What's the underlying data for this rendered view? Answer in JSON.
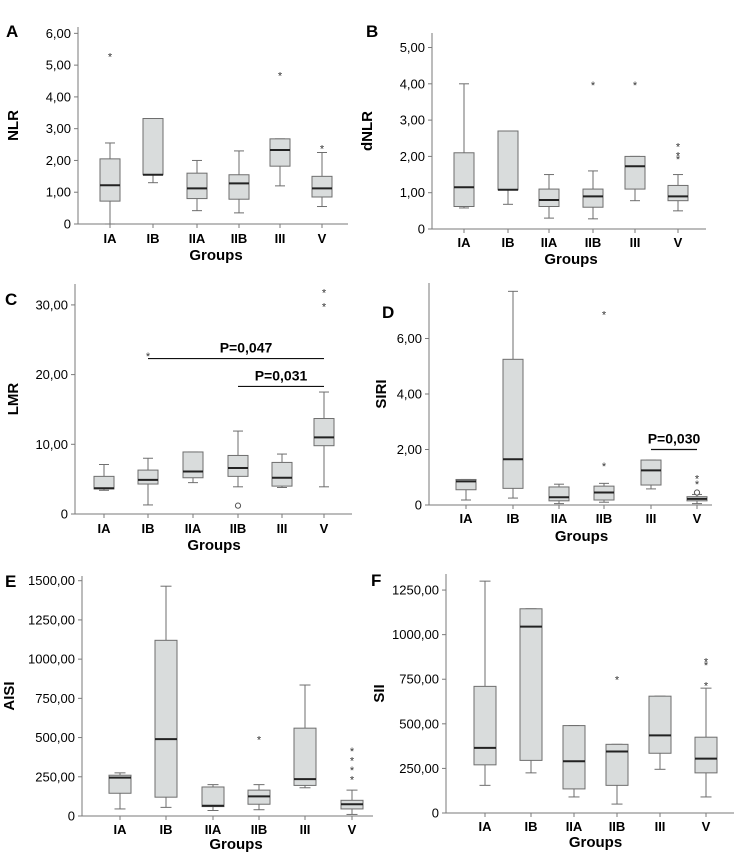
{
  "figure": {
    "colors": {
      "box_fill": "#d9dcdc",
      "stroke": "#6e6e6e",
      "text": "#000000",
      "axis": "#7a7a7a"
    }
  },
  "chart_data": [
    {
      "id": "A",
      "panel_label": "A",
      "type": "box",
      "ylabel": "NLR",
      "xlabel": "Groups",
      "ylim": [
        0,
        6.2
      ],
      "yticks": [
        0,
        1,
        2,
        3,
        4,
        5,
        6
      ],
      "ytick_labels": [
        "0",
        "1,00",
        "2,00",
        "3,00",
        "4,00",
        "5,00",
        "6,00"
      ],
      "categories": [
        "IA",
        "IB",
        "IIA",
        "IIB",
        "III",
        "V"
      ],
      "boxes": [
        {
          "min": 0,
          "q1": 0.72,
          "median": 1.22,
          "q3": 2.05,
          "max": 2.55
        },
        {
          "min": 1.3,
          "q1": 1.55,
          "median": 1.55,
          "q3": 3.32,
          "max": 3.32
        },
        {
          "min": 0.42,
          "q1": 0.8,
          "median": 1.12,
          "q3": 1.6,
          "max": 2.0
        },
        {
          "min": 0.35,
          "q1": 0.78,
          "median": 1.28,
          "q3": 1.55,
          "max": 2.3
        },
        {
          "min": 1.2,
          "q1": 1.82,
          "median": 2.33,
          "q3": 2.68,
          "max": 2.68
        },
        {
          "min": 0.55,
          "q1": 0.85,
          "median": 1.12,
          "q3": 1.5,
          "max": 2.25
        }
      ],
      "outliers": [
        {
          "cat": 0,
          "value": 5.3,
          "mark": "*"
        },
        {
          "cat": 4,
          "value": 4.7,
          "mark": "*"
        },
        {
          "cat": 5,
          "value": 2.4,
          "mark": "*"
        }
      ],
      "annotations": []
    },
    {
      "id": "B",
      "panel_label": "B",
      "type": "box",
      "ylabel": "dNLR",
      "xlabel": "Groups",
      "ylim": [
        0,
        5.4
      ],
      "yticks": [
        0,
        1,
        2,
        3,
        4,
        5
      ],
      "ytick_labels": [
        "0",
        "1,00",
        "2,00",
        "3,00",
        "4,00",
        "5,00"
      ],
      "categories": [
        "IA",
        "IB",
        "IIA",
        "IIB",
        "III",
        "V"
      ],
      "boxes": [
        {
          "min": 0.58,
          "q1": 0.62,
          "median": 1.15,
          "q3": 2.1,
          "max": 4.0
        },
        {
          "min": 0.68,
          "q1": 1.08,
          "median": 1.08,
          "q3": 2.7,
          "max": 2.7
        },
        {
          "min": 0.3,
          "q1": 0.62,
          "median": 0.8,
          "q3": 1.1,
          "max": 1.5
        },
        {
          "min": 0.28,
          "q1": 0.6,
          "median": 0.9,
          "q3": 1.1,
          "max": 1.6
        },
        {
          "min": 0.78,
          "q1": 1.1,
          "median": 1.73,
          "q3": 2.0,
          "max": 2.0
        },
        {
          "min": 0.5,
          "q1": 0.78,
          "median": 0.9,
          "q3": 1.2,
          "max": 1.5
        }
      ],
      "outliers": [
        {
          "cat": 3,
          "value": 4.0,
          "mark": "*"
        },
        {
          "cat": 4,
          "value": 4.0,
          "mark": "*"
        },
        {
          "cat": 5,
          "value": 2.3,
          "mark": "*"
        },
        {
          "cat": 5,
          "value": 2.05,
          "mark": "*"
        },
        {
          "cat": 5,
          "value": 1.95,
          "mark": "*"
        }
      ],
      "annotations": []
    },
    {
      "id": "C",
      "panel_label": "C",
      "type": "box",
      "ylabel": "LMR",
      "xlabel": "Groups",
      "ylim": [
        0,
        33
      ],
      "yticks": [
        0,
        10,
        20,
        30
      ],
      "ytick_labels": [
        "0",
        "10,00",
        "20,00",
        "30,00"
      ],
      "categories": [
        "IA",
        "IB",
        "IIA",
        "IIB",
        "III",
        "V"
      ],
      "boxes": [
        {
          "min": 3.4,
          "q1": 3.6,
          "median": 3.7,
          "q3": 5.4,
          "max": 7.1
        },
        {
          "min": 1.3,
          "q1": 4.3,
          "median": 4.9,
          "q3": 6.3,
          "max": 8.0
        },
        {
          "min": 4.5,
          "q1": 5.2,
          "median": 6.1,
          "q3": 8.9,
          "max": 8.9
        },
        {
          "min": 3.9,
          "q1": 5.4,
          "median": 6.6,
          "q3": 8.4,
          "max": 11.9
        },
        {
          "min": 3.8,
          "q1": 4.0,
          "median": 5.2,
          "q3": 7.4,
          "max": 8.6
        },
        {
          "min": 3.9,
          "q1": 9.8,
          "median": 11.0,
          "q3": 13.7,
          "max": 17.5
        }
      ],
      "outliers": [
        {
          "cat": 1,
          "value": 22.8,
          "mark": "*"
        },
        {
          "cat": 3,
          "value": 1.2,
          "mark": "o"
        },
        {
          "cat": 5,
          "value": 31.9,
          "mark": "*"
        },
        {
          "cat": 5,
          "value": 29.9,
          "mark": "*"
        }
      ],
      "annotations": [
        {
          "text": "P=0,047",
          "from": 1,
          "to": 5,
          "value": 22.3
        },
        {
          "text": "P=0,031",
          "from": 3,
          "to": 5,
          "value": 18.3
        }
      ]
    },
    {
      "id": "D",
      "panel_label": "D",
      "type": "box",
      "ylabel": "SIRI",
      "xlabel": "Groups",
      "ylim": [
        0,
        8
      ],
      "yticks": [
        0,
        2,
        4,
        6
      ],
      "ytick_labels": [
        "0",
        "2,00",
        "4,00",
        "6,00"
      ],
      "categories": [
        "IA",
        "IB",
        "IIA",
        "IIB",
        "III",
        "V"
      ],
      "boxes": [
        {
          "min": 0.18,
          "q1": 0.55,
          "median": 0.85,
          "q3": 0.92,
          "max": 0.92
        },
        {
          "min": 0.25,
          "q1": 0.6,
          "median": 1.65,
          "q3": 5.25,
          "max": 7.7
        },
        {
          "min": 0.05,
          "q1": 0.15,
          "median": 0.28,
          "q3": 0.65,
          "max": 0.75
        },
        {
          "min": 0.1,
          "q1": 0.18,
          "median": 0.45,
          "q3": 0.68,
          "max": 0.78
        },
        {
          "min": 0.58,
          "q1": 0.72,
          "median": 1.25,
          "q3": 1.62,
          "max": 1.62
        },
        {
          "min": 0.05,
          "q1": 0.15,
          "median": 0.22,
          "q3": 0.3,
          "max": 0.38
        }
      ],
      "outliers": [
        {
          "cat": 3,
          "value": 6.9,
          "mark": "*"
        },
        {
          "cat": 3,
          "value": 1.45,
          "mark": "*"
        },
        {
          "cat": 5,
          "value": 1.0,
          "mark": "*"
        },
        {
          "cat": 5,
          "value": 0.8,
          "mark": "*"
        },
        {
          "cat": 5,
          "value": 0.45,
          "mark": "o"
        }
      ],
      "annotations": [
        {
          "text": "P=0,030",
          "from": 4,
          "to": 5,
          "value": 2.0
        }
      ]
    },
    {
      "id": "E",
      "panel_label": "E",
      "type": "box",
      "ylabel": "AISI",
      "xlabel": "Groups",
      "ylim": [
        0,
        1530
      ],
      "yticks": [
        0,
        250,
        500,
        750,
        1000,
        1250,
        1500
      ],
      "ytick_labels": [
        "0",
        "250,00",
        "500,00",
        "750,00",
        "1000,00",
        "1250,00",
        "1500,00"
      ],
      "categories": [
        "IA",
        "IB",
        "IIA",
        "IIB",
        "III",
        "V"
      ],
      "boxes": [
        {
          "min": 45,
          "q1": 145,
          "median": 245,
          "q3": 260,
          "max": 275
        },
        {
          "min": 55,
          "q1": 120,
          "median": 490,
          "q3": 1120,
          "max": 1465
        },
        {
          "min": 35,
          "q1": 60,
          "median": 65,
          "q3": 185,
          "max": 200
        },
        {
          "min": 40,
          "q1": 75,
          "median": 125,
          "q3": 165,
          "max": 200
        },
        {
          "min": 180,
          "q1": 195,
          "median": 235,
          "q3": 560,
          "max": 835
        },
        {
          "min": 10,
          "q1": 45,
          "median": 75,
          "q3": 100,
          "max": 165
        }
      ],
      "outliers": [
        {
          "cat": 3,
          "value": 495,
          "mark": "*"
        },
        {
          "cat": 5,
          "value": 420,
          "mark": "*"
        },
        {
          "cat": 5,
          "value": 360,
          "mark": "*"
        },
        {
          "cat": 5,
          "value": 300,
          "mark": "*"
        },
        {
          "cat": 5,
          "value": 240,
          "mark": "*"
        }
      ],
      "annotations": []
    },
    {
      "id": "F",
      "panel_label": "F",
      "type": "box",
      "ylabel": "SII",
      "xlabel": "Groups",
      "ylim": [
        0,
        1340
      ],
      "yticks": [
        0,
        250,
        500,
        750,
        1000,
        1250
      ],
      "ytick_labels": [
        "0",
        "250,00",
        "500,00",
        "750,00",
        "1000,00",
        "1250,00"
      ],
      "categories": [
        "IA",
        "IB",
        "IIA",
        "IIB",
        "III",
        "V"
      ],
      "boxes": [
        {
          "min": 155,
          "q1": 270,
          "median": 365,
          "q3": 710,
          "max": 1300
        },
        {
          "min": 225,
          "q1": 295,
          "median": 1045,
          "q3": 1145,
          "max": 1145
        },
        {
          "min": 90,
          "q1": 135,
          "median": 290,
          "q3": 490,
          "max": 490
        },
        {
          "min": 50,
          "q1": 155,
          "median": 345,
          "q3": 385,
          "max": 385
        },
        {
          "min": 245,
          "q1": 335,
          "median": 435,
          "q3": 655,
          "max": 655
        },
        {
          "min": 90,
          "q1": 225,
          "median": 305,
          "q3": 425,
          "max": 700
        }
      ],
      "outliers": [
        {
          "cat": 3,
          "value": 755,
          "mark": "*"
        },
        {
          "cat": 5,
          "value": 855,
          "mark": "*"
        },
        {
          "cat": 5,
          "value": 835,
          "mark": "*"
        },
        {
          "cat": 5,
          "value": 720,
          "mark": "*"
        }
      ],
      "annotations": []
    }
  ]
}
